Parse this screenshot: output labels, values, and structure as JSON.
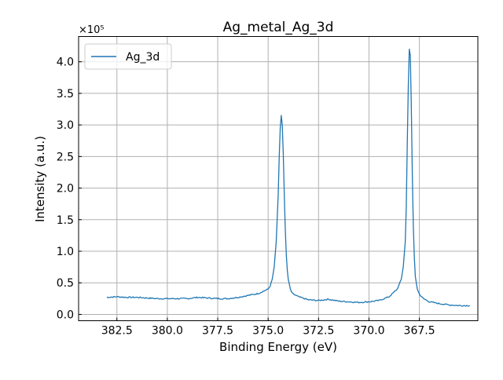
{
  "chart_data": {
    "type": "line",
    "title": "Ag_metal_Ag_3d",
    "xlabel": "Binding Energy (eV)",
    "ylabel": "Intensity (a.u.)",
    "y_multiplier_label": "×10⁵",
    "x_reversed": true,
    "xlim": [
      384.4,
      364.6
    ],
    "ylim": [
      -0.1,
      4.4
    ],
    "x_ticks": [
      382.5,
      380.0,
      377.5,
      375.0,
      372.5,
      370.0,
      367.5
    ],
    "x_tick_labels": [
      "382.5",
      "380.0",
      "377.5",
      "375.0",
      "372.5",
      "370.0",
      "367.5"
    ],
    "y_ticks": [
      0.0,
      0.5,
      1.0,
      1.5,
      2.0,
      2.5,
      3.0,
      3.5,
      4.0
    ],
    "y_tick_labels": [
      "0.0",
      "0.5",
      "1.0",
      "1.5",
      "2.0",
      "2.5",
      "3.0",
      "3.5",
      "4.0"
    ],
    "grid": true,
    "legend_position": "top-left",
    "series": [
      {
        "name": "Ag_3d",
        "color": "#1f77b4",
        "x": [
          383.0,
          382.5,
          382.0,
          381.5,
          381.0,
          380.5,
          380.0,
          379.5,
          379.0,
          378.5,
          378.0,
          377.5,
          377.0,
          376.5,
          376.0,
          375.5,
          375.0,
          374.9,
          374.8,
          374.7,
          374.6,
          374.5,
          374.45,
          374.4,
          374.35,
          374.3,
          374.25,
          374.2,
          374.15,
          374.1,
          374.05,
          374.0,
          373.9,
          373.8,
          373.5,
          373.0,
          372.5,
          372.0,
          371.5,
          371.0,
          370.5,
          370.0,
          369.5,
          369.0,
          368.6,
          368.4,
          368.3,
          368.2,
          368.15,
          368.1,
          368.05,
          368.0,
          367.95,
          367.9,
          367.85,
          367.8,
          367.75,
          367.7,
          367.6,
          367.5,
          367.3,
          367.0,
          366.5,
          366.0,
          365.5,
          365.0
        ],
        "values": [
          0.27,
          0.28,
          0.27,
          0.27,
          0.26,
          0.25,
          0.25,
          0.25,
          0.25,
          0.27,
          0.26,
          0.25,
          0.25,
          0.27,
          0.3,
          0.33,
          0.4,
          0.45,
          0.55,
          0.75,
          1.15,
          1.9,
          2.5,
          2.95,
          3.15,
          3.0,
          2.55,
          1.9,
          1.35,
          0.95,
          0.7,
          0.55,
          0.4,
          0.33,
          0.28,
          0.23,
          0.22,
          0.24,
          0.21,
          0.2,
          0.19,
          0.2,
          0.22,
          0.28,
          0.4,
          0.55,
          0.75,
          1.15,
          1.7,
          2.7,
          3.6,
          4.2,
          4.1,
          3.3,
          2.2,
          1.4,
          0.9,
          0.6,
          0.4,
          0.32,
          0.25,
          0.2,
          0.17,
          0.15,
          0.14,
          0.14
        ]
      }
    ]
  }
}
